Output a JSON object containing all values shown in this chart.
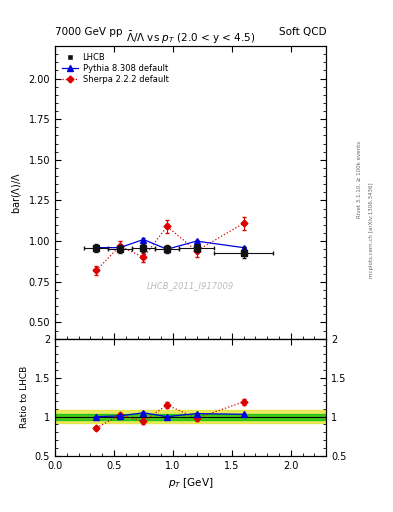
{
  "title_left": "7000 GeV pp",
  "title_right": "Soft QCD",
  "panel_title": "$\\bar{N}/\\Lambda$ vs $p_T$ (2.0 < y < 4.5)",
  "ylabel_main": "bar($\\Lambda$)/$\\Lambda$",
  "ylabel_ratio": "Ratio to LHCB",
  "xlabel": "$p_T$ [GeV]",
  "watermark": "LHCB_2011_I917009",
  "right_label1": "Rivet 3.1.10, ≥ 100k events",
  "right_label2": "mcplots.cern.ch [arXiv:1306.3436]",
  "ylim_main": [
    0.4,
    2.2
  ],
  "ylim_ratio": [
    0.5,
    2.0
  ],
  "xlim": [
    0.0,
    2.3
  ],
  "lhcb_x": [
    0.35,
    0.55,
    0.75,
    0.95,
    1.2,
    1.6
  ],
  "lhcb_y": [
    0.96,
    0.95,
    0.96,
    0.95,
    0.96,
    0.93
  ],
  "lhcb_xerr": [
    0.1,
    0.1,
    0.1,
    0.1,
    0.15,
    0.25
  ],
  "lhcb_yerr": [
    0.025,
    0.025,
    0.025,
    0.025,
    0.025,
    0.035
  ],
  "pythia_x": [
    0.35,
    0.55,
    0.75,
    0.95,
    1.2,
    1.6
  ],
  "pythia_y": [
    0.96,
    0.96,
    1.01,
    0.95,
    1.0,
    0.96
  ],
  "pythia_yerr": [
    0.005,
    0.005,
    0.008,
    0.008,
    0.007,
    0.005
  ],
  "sherpa_x": [
    0.35,
    0.55,
    0.75,
    0.95,
    1.2,
    1.6
  ],
  "sherpa_y": [
    0.82,
    0.97,
    0.9,
    1.09,
    0.94,
    1.11
  ],
  "sherpa_yerr": [
    0.03,
    0.03,
    0.03,
    0.04,
    0.04,
    0.04
  ],
  "pythia_ratio_y": [
    1.0,
    1.01,
    1.05,
    1.0,
    1.04,
    1.03
  ],
  "pythia_ratio_yerr": [
    0.008,
    0.008,
    0.01,
    0.01,
    0.01,
    0.008
  ],
  "sherpa_ratio_y": [
    0.855,
    1.02,
    0.94,
    1.15,
    0.98,
    1.19
  ],
  "sherpa_ratio_yerr": [
    0.03,
    0.03,
    0.03,
    0.04,
    0.04,
    0.04
  ],
  "lhcb_color": "#111111",
  "pythia_color": "#0000dd",
  "sherpa_color": "#dd0000",
  "band_inner_color": "#00bb00",
  "band_outer_color": "#dddd00",
  "band_inner_half": 0.04,
  "band_outer_half": 0.08
}
